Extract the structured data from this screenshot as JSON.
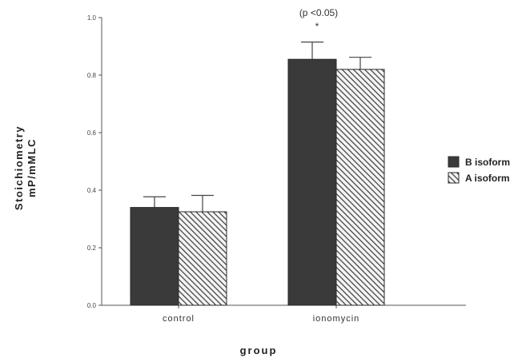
{
  "chart_data": {
    "type": "bar",
    "title": "",
    "xlabel": "group",
    "ylabel_lines": [
      "Stoichiometry",
      "mP/mMLC"
    ],
    "ylim": [
      0,
      1.0
    ],
    "yticks": [
      "0.0",
      "0.2",
      "0.4",
      "0.6",
      "0.8",
      "1.0"
    ],
    "categories": [
      "control",
      "ionomycin"
    ],
    "series": [
      {
        "name": "B isoform",
        "values": [
          0.34,
          0.855
        ],
        "errors": [
          0.037,
          0.06
        ],
        "color": "#3a3a3a",
        "pattern": "solid"
      },
      {
        "name": "A isoform",
        "values": [
          0.325,
          0.82
        ],
        "errors": [
          0.057,
          0.042
        ],
        "color": "#3a3a3a",
        "pattern": "hatched"
      }
    ],
    "annotations": [
      {
        "text": "(p  <0.05)"
      },
      {
        "text": "*"
      }
    ],
    "legend_position": "right",
    "grid": false
  }
}
